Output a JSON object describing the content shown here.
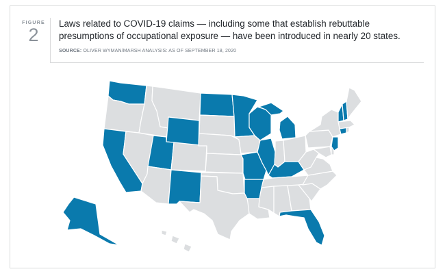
{
  "figure": {
    "word": "FIGURE",
    "number": "2"
  },
  "title": "Laws related to COVID-19 claims — including some that establish rebuttable presumptions of occupational exposure — have been introduced in nearly 20 states.",
  "source": {
    "label": "SOURCE:",
    "text": "OLIVER WYMAN/MARSH ANALYSIS: AS OF SEPTEMBER 18, 2020"
  },
  "colors": {
    "highlighted": "#0a7aad",
    "other": "#dcdee0",
    "text": "#1f2328",
    "muted": "#8a9199"
  },
  "states_with_laws": [
    "WA",
    "CA",
    "UT",
    "WY",
    "NM",
    "ND",
    "MN",
    "WI",
    "MI",
    "IL",
    "MO",
    "AR",
    "KY",
    "FL",
    "AK",
    "VT",
    "NH",
    "NJ",
    "CT"
  ]
}
